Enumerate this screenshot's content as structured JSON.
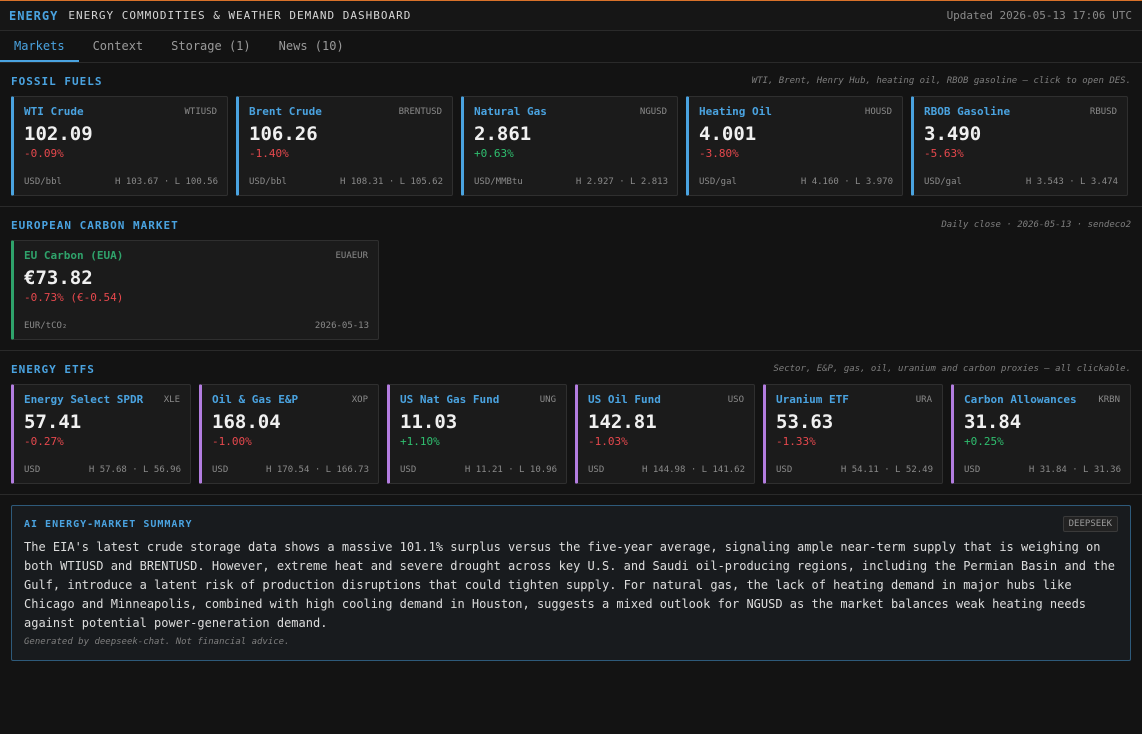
{
  "header": {
    "brand": "ENERGY",
    "title": "ENERGY COMMODITIES & WEATHER DEMAND DASHBOARD",
    "updated": "Updated 2026-05-13 17:06 UTC"
  },
  "tabs": [
    {
      "label": "Markets"
    },
    {
      "label": "Context"
    },
    {
      "label": "Storage (1)"
    },
    {
      "label": "News (10)"
    }
  ],
  "fossil": {
    "title": "FOSSIL FUELS",
    "note": "WTI, Brent, Henry Hub, heating oil, RBOB gasoline — click to open DES.",
    "cards": [
      {
        "name": "WTI Crude",
        "sym": "WTIUSD",
        "price": "102.09",
        "chg": "-0.09%",
        "unit": "USD/bbl",
        "hl": "H 103.67 · L 100.56"
      },
      {
        "name": "Brent Crude",
        "sym": "BRENTUSD",
        "price": "106.26",
        "chg": "-1.40%",
        "unit": "USD/bbl",
        "hl": "H 108.31 · L 105.62"
      },
      {
        "name": "Natural Gas",
        "sym": "NGUSD",
        "price": "2.861",
        "chg": "+0.63%",
        "unit": "USD/MMBtu",
        "hl": "H 2.927 · L 2.813"
      },
      {
        "name": "Heating Oil",
        "sym": "HOUSD",
        "price": "4.001",
        "chg": "-3.80%",
        "unit": "USD/gal",
        "hl": "H 4.160 · L 3.970"
      },
      {
        "name": "RBOB Gasoline",
        "sym": "RBUSD",
        "price": "3.490",
        "chg": "-5.63%",
        "unit": "USD/gal",
        "hl": "H 3.543 · L 3.474"
      }
    ]
  },
  "carbon": {
    "title": "EUROPEAN CARBON MARKET",
    "note": "Daily close · 2026-05-13 · sendeco2",
    "card": {
      "name": "EU Carbon (EUA)",
      "sym": "EUAEUR",
      "price": "€73.82",
      "chg": "-0.73% (€-0.54)",
      "unit": "EUR/tCO₂",
      "date": "2026-05-13"
    }
  },
  "etf": {
    "title": "ENERGY ETFS",
    "note": "Sector, E&P, gas, oil, uranium and carbon proxies — all clickable.",
    "cards": [
      {
        "name": "Energy Select SPDR",
        "sym": "XLE",
        "price": "57.41",
        "chg": "-0.27%",
        "unit": "USD",
        "hl": "H 57.68 · L 56.96"
      },
      {
        "name": "Oil & Gas E&P",
        "sym": "XOP",
        "price": "168.04",
        "chg": "-1.00%",
        "unit": "USD",
        "hl": "H 170.54 · L 166.73"
      },
      {
        "name": "US Nat Gas Fund",
        "sym": "UNG",
        "price": "11.03",
        "chg": "+1.10%",
        "unit": "USD",
        "hl": "H 11.21 · L 10.96"
      },
      {
        "name": "US Oil Fund",
        "sym": "USO",
        "price": "142.81",
        "chg": "-1.03%",
        "unit": "USD",
        "hl": "H 144.98 · L 141.62"
      },
      {
        "name": "Uranium ETF",
        "sym": "URA",
        "price": "53.63",
        "chg": "-1.33%",
        "unit": "USD",
        "hl": "H 54.11 · L 52.49"
      },
      {
        "name": "Carbon Allowances",
        "sym": "KRBN",
        "price": "31.84",
        "chg": "+0.25%",
        "unit": "USD",
        "hl": "H 31.84 · L 31.36"
      }
    ]
  },
  "summary": {
    "title": "AI ENERGY-MARKET SUMMARY",
    "badge": "DEEPSEEK",
    "body": "The EIA's latest crude storage data shows a massive 101.1% surplus versus the five-year average, signaling ample near-term supply that is weighing on both WTIUSD and BRENTUSD. However, extreme heat and severe drought across key U.S. and Saudi oil-producing regions, including the Permian Basin and the Gulf, introduce a latent risk of production disruptions that could tighten supply. For natural gas, the lack of heating demand in major hubs like Chicago and Minneapolis, combined with high cooling demand in Houston, suggests a mixed outlook for NGUSD as the market balances weak heating needs against potential power-generation demand.",
    "footer": "Generated by deepseek-chat. Not financial advice."
  }
}
